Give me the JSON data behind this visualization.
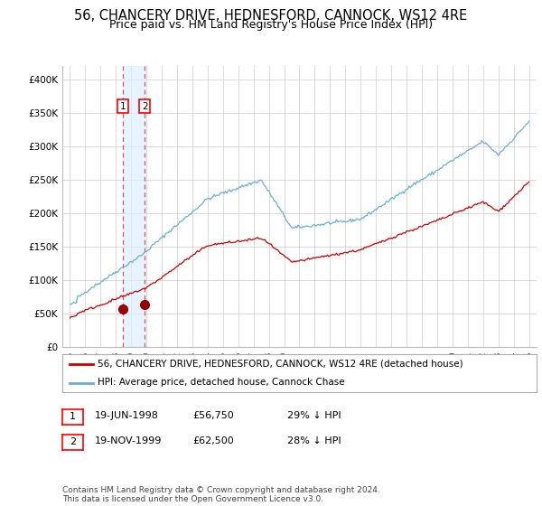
{
  "title": "56, CHANCERY DRIVE, HEDNESFORD, CANNOCK, WS12 4RE",
  "subtitle": "Price paid vs. HM Land Registry's House Price Index (HPI)",
  "ylim": [
    0,
    420000
  ],
  "yticks": [
    0,
    50000,
    100000,
    150000,
    200000,
    250000,
    300000,
    350000,
    400000
  ],
  "ytick_labels": [
    "£0",
    "£50K",
    "£100K",
    "£150K",
    "£200K",
    "£250K",
    "£300K",
    "£350K",
    "£400K"
  ],
  "sale1_date_num": 1998.46,
  "sale1_price": 56750,
  "sale2_date_num": 1999.88,
  "sale2_price": 62500,
  "hpi_color": "#6baed6",
  "price_color": "#cc0000",
  "vline_color": "#d9534f",
  "shade_color": "#ddeeff",
  "marker_color": "#990000",
  "legend_label_price": "56, CHANCERY DRIVE, HEDNESFORD, CANNOCK, WS12 4RE (detached house)",
  "legend_label_hpi": "HPI: Average price, detached house, Cannock Chase",
  "table_row1": [
    "1",
    "19-JUN-1998",
    "£56,750",
    "29% ↓ HPI"
  ],
  "table_row2": [
    "2",
    "19-NOV-1999",
    "£62,500",
    "28% ↓ HPI"
  ],
  "footer": "Contains HM Land Registry data © Crown copyright and database right 2024.\nThis data is licensed under the Open Government Licence v3.0.",
  "background_color": "#ffffff",
  "grid_color": "#cccccc",
  "title_fontsize": 10.5,
  "subtitle_fontsize": 9
}
